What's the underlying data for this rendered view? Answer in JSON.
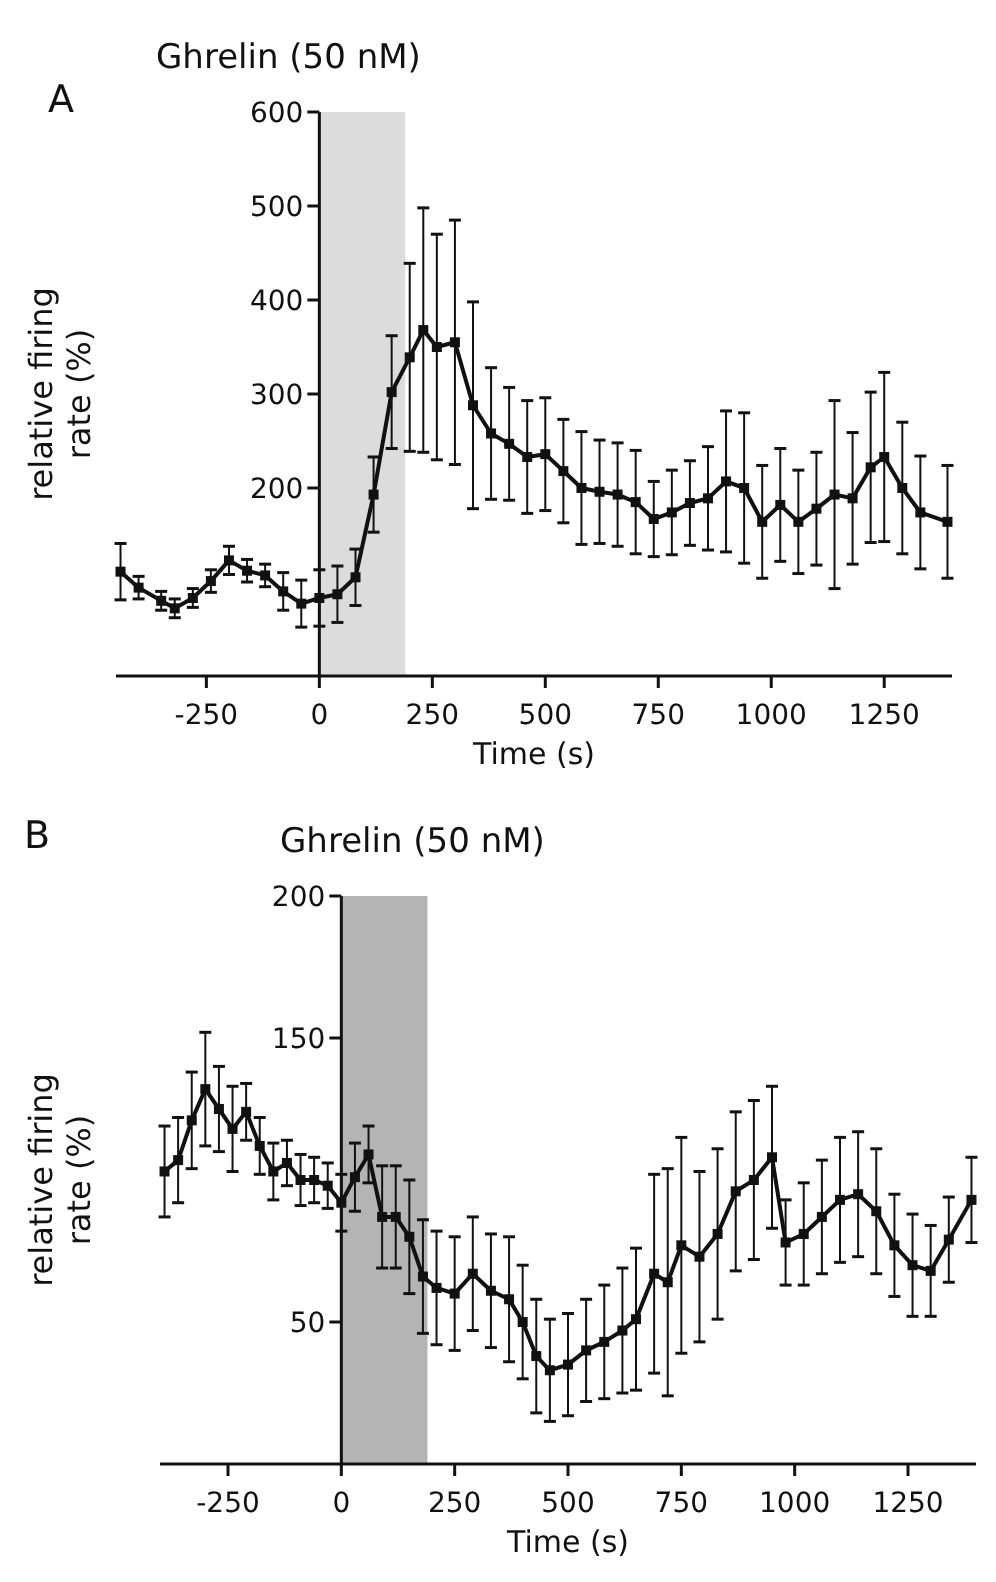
{
  "chart_data": [
    {
      "type": "line",
      "title": "Ghrelin (50 nM)",
      "xlabel": "Time (s)",
      "ylabel": "relative firing\nrate (%)",
      "annotations": [
        "A"
      ],
      "xlim": [
        -450,
        1400
      ],
      "ylim": [
        0,
        600
      ],
      "xticks": [
        -250,
        0,
        250,
        500,
        750,
        1000,
        1250
      ],
      "yticks": [
        200,
        300,
        400,
        500,
        600
      ],
      "grid": false,
      "marker": "square",
      "line_style": "solid",
      "bands": [
        {
          "axis": "x",
          "from": 0,
          "to": 190,
          "color": "#dcdcdc"
        }
      ],
      "series": [
        {
          "color": "#111111",
          "x": [
            -440,
            -400,
            -350,
            -320,
            -280,
            -240,
            -200,
            -160,
            -120,
            -80,
            -40,
            0,
            40,
            80,
            120,
            160,
            200,
            230,
            260,
            300,
            340,
            380,
            420,
            460,
            500,
            540,
            580,
            620,
            660,
            700,
            740,
            780,
            820,
            860,
            900,
            940,
            980,
            1020,
            1060,
            1100,
            1140,
            1180,
            1220,
            1250,
            1290,
            1330,
            1390
          ],
          "values": [
            111,
            94,
            80,
            72,
            83,
            101,
            123,
            112,
            107,
            90,
            77,
            83,
            87,
            105,
            193,
            302,
            339,
            368,
            350,
            355,
            288,
            258,
            247,
            233,
            236,
            218,
            200,
            196,
            193,
            185,
            167,
            174,
            184,
            189,
            207,
            200,
            164,
            182,
            164,
            178,
            193,
            189,
            222,
            233,
            200,
            174,
            164
          ],
          "errors": [
            30,
            12,
            10,
            10,
            10,
            12,
            15,
            12,
            12,
            20,
            25,
            30,
            30,
            30,
            40,
            60,
            100,
            130,
            120,
            130,
            110,
            70,
            60,
            60,
            60,
            55,
            60,
            55,
            55,
            55,
            40,
            45,
            45,
            55,
            75,
            80,
            60,
            60,
            55,
            60,
            100,
            70,
            80,
            90,
            70,
            60,
            60
          ]
        }
      ]
    },
    {
      "type": "line",
      "title": "Ghrelin (50 nM)",
      "xlabel": "Time (s)",
      "ylabel": "relative firing\nrate (%)",
      "annotations": [
        "B"
      ],
      "xlim": [
        -400,
        1400
      ],
      "ylim": [
        0,
        200
      ],
      "xticks": [
        -250,
        0,
        250,
        500,
        750,
        1000,
        1250
      ],
      "yticks": [
        50,
        150,
        200
      ],
      "grid": false,
      "marker": "square",
      "line_style": "solid",
      "bands": [
        {
          "axis": "x",
          "from": 0,
          "to": 190,
          "color": "#b4b4b4"
        }
      ],
      "series": [
        {
          "color": "#111111",
          "x": [
            -390,
            -360,
            -330,
            -300,
            -270,
            -240,
            -210,
            -180,
            -150,
            -120,
            -90,
            -60,
            -30,
            0,
            30,
            60,
            90,
            120,
            150,
            180,
            210,
            250,
            290,
            330,
            370,
            400,
            430,
            460,
            500,
            540,
            580,
            620,
            650,
            690,
            720,
            750,
            790,
            830,
            870,
            910,
            950,
            980,
            1020,
            1060,
            1100,
            1140,
            1180,
            1220,
            1260,
            1300,
            1340,
            1390
          ],
          "values": [
            103,
            107,
            121,
            132,
            125,
            118,
            124,
            112,
            103,
            106,
            100,
            100,
            98,
            92,
            101,
            109,
            87,
            87,
            80,
            66,
            62,
            60,
            67,
            61,
            58,
            50,
            38,
            33,
            35,
            40,
            43,
            47,
            51,
            67,
            64,
            77,
            73,
            81,
            96,
            100,
            108,
            78,
            81,
            87,
            93,
            95,
            89,
            77,
            70,
            68,
            79,
            93
          ],
          "errors": [
            16,
            15,
            17,
            20,
            15,
            15,
            10,
            10,
            10,
            8,
            9,
            8,
            8,
            10,
            12,
            10,
            18,
            18,
            20,
            20,
            20,
            20,
            20,
            20,
            22,
            20,
            20,
            18,
            18,
            18,
            20,
            22,
            25,
            35,
            40,
            38,
            30,
            30,
            28,
            28,
            25,
            15,
            18,
            20,
            22,
            22,
            22,
            18,
            18,
            16,
            15,
            15
          ]
        }
      ]
    }
  ]
}
